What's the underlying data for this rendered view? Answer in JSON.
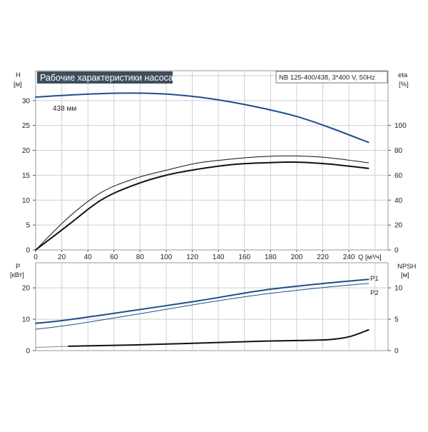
{
  "chart_data": [
    {
      "type": "line",
      "title": "Рабочие характеристики насоса",
      "subtitle": "NB 125-400/438, 3*400 V, 50Hz",
      "xlabel": "Q [м³/ч]",
      "x_ticks": [
        "0",
        "20",
        "40",
        "60",
        "80",
        "100",
        "120",
        "140",
        "160",
        "180",
        "200",
        "220",
        "240"
      ],
      "xlim": [
        0,
        270
      ],
      "y_left": {
        "label_line1": "H",
        "label_line2": "[м]",
        "ticks": [
          "0",
          "5",
          "10",
          "15",
          "20",
          "25",
          "30"
        ],
        "lim": [
          0,
          36
        ]
      },
      "y_right": {
        "label_line1": "eta",
        "label_line2": "[%]",
        "ticks": [
          "0",
          "20",
          "40",
          "60",
          "80",
          "100"
        ],
        "lim": [
          0,
          144
        ]
      },
      "grid": true,
      "annotations": [
        {
          "text": "438 мм"
        }
      ],
      "series": [
        {
          "axis": "left",
          "color": "#1f4e8c",
          "x": [
            0,
            25,
            50,
            75,
            100,
            125,
            150,
            175,
            200,
            225,
            255
          ],
          "y": [
            30.7,
            31.1,
            31.4,
            31.5,
            31.3,
            30.7,
            29.7,
            28.4,
            26.8,
            24.6,
            21.6
          ]
        },
        {
          "axis": "right",
          "color": "#111111",
          "width": 1,
          "x": [
            0,
            25,
            50,
            75,
            100,
            125,
            150,
            175,
            200,
            225,
            255
          ],
          "y": [
            0,
            26,
            46,
            57,
            64,
            70,
            73,
            75,
            75.5,
            74,
            70
          ]
        },
        {
          "axis": "right",
          "color": "#111111",
          "width": 2,
          "x": [
            0,
            25,
            50,
            75,
            100,
            125,
            150,
            175,
            200,
            225,
            255
          ],
          "y": [
            0,
            20,
            40,
            52,
            60,
            65,
            68.5,
            70,
            70.5,
            69,
            65.5
          ]
        }
      ]
    },
    {
      "type": "line",
      "xlim": [
        0,
        270
      ],
      "y_left": {
        "label_line1": "P",
        "label_line2": "[кВт]",
        "ticks": [
          "0",
          "10",
          "20"
        ],
        "lim": [
          0,
          28
        ]
      },
      "y_right": {
        "label_line1": "NPSH",
        "label_line2": "[м]",
        "ticks": [
          "0",
          "5",
          "10"
        ],
        "lim": [
          0,
          14
        ]
      },
      "grid": true,
      "series": [
        {
          "name": "P1",
          "axis": "left",
          "color": "#1f4e8c",
          "width": 2,
          "x": [
            0,
            25,
            75,
            125,
            175,
            225,
            255
          ],
          "y": [
            8.7,
            9.8,
            12.8,
            15.9,
            19.3,
            21.6,
            22.7
          ]
        },
        {
          "name": "P2",
          "axis": "left",
          "color": "#1f4e8c",
          "width": 1,
          "x": [
            0,
            25,
            75,
            125,
            175,
            225,
            255
          ],
          "y": [
            6.8,
            8.1,
            11.4,
            14.9,
            18.0,
            20.3,
            21.4
          ]
        },
        {
          "axis": "right",
          "color": "#111111",
          "width": 2,
          "x": [
            25,
            75,
            125,
            175,
            200,
            225,
            240,
            255
          ],
          "y": [
            0.7,
            0.9,
            1.2,
            1.5,
            1.6,
            1.75,
            2.2,
            3.3
          ]
        },
        {
          "axis": "right",
          "color": "#888888",
          "width": 1,
          "x": [
            0,
            25
          ],
          "y": [
            0.5,
            0.7
          ]
        }
      ]
    }
  ]
}
